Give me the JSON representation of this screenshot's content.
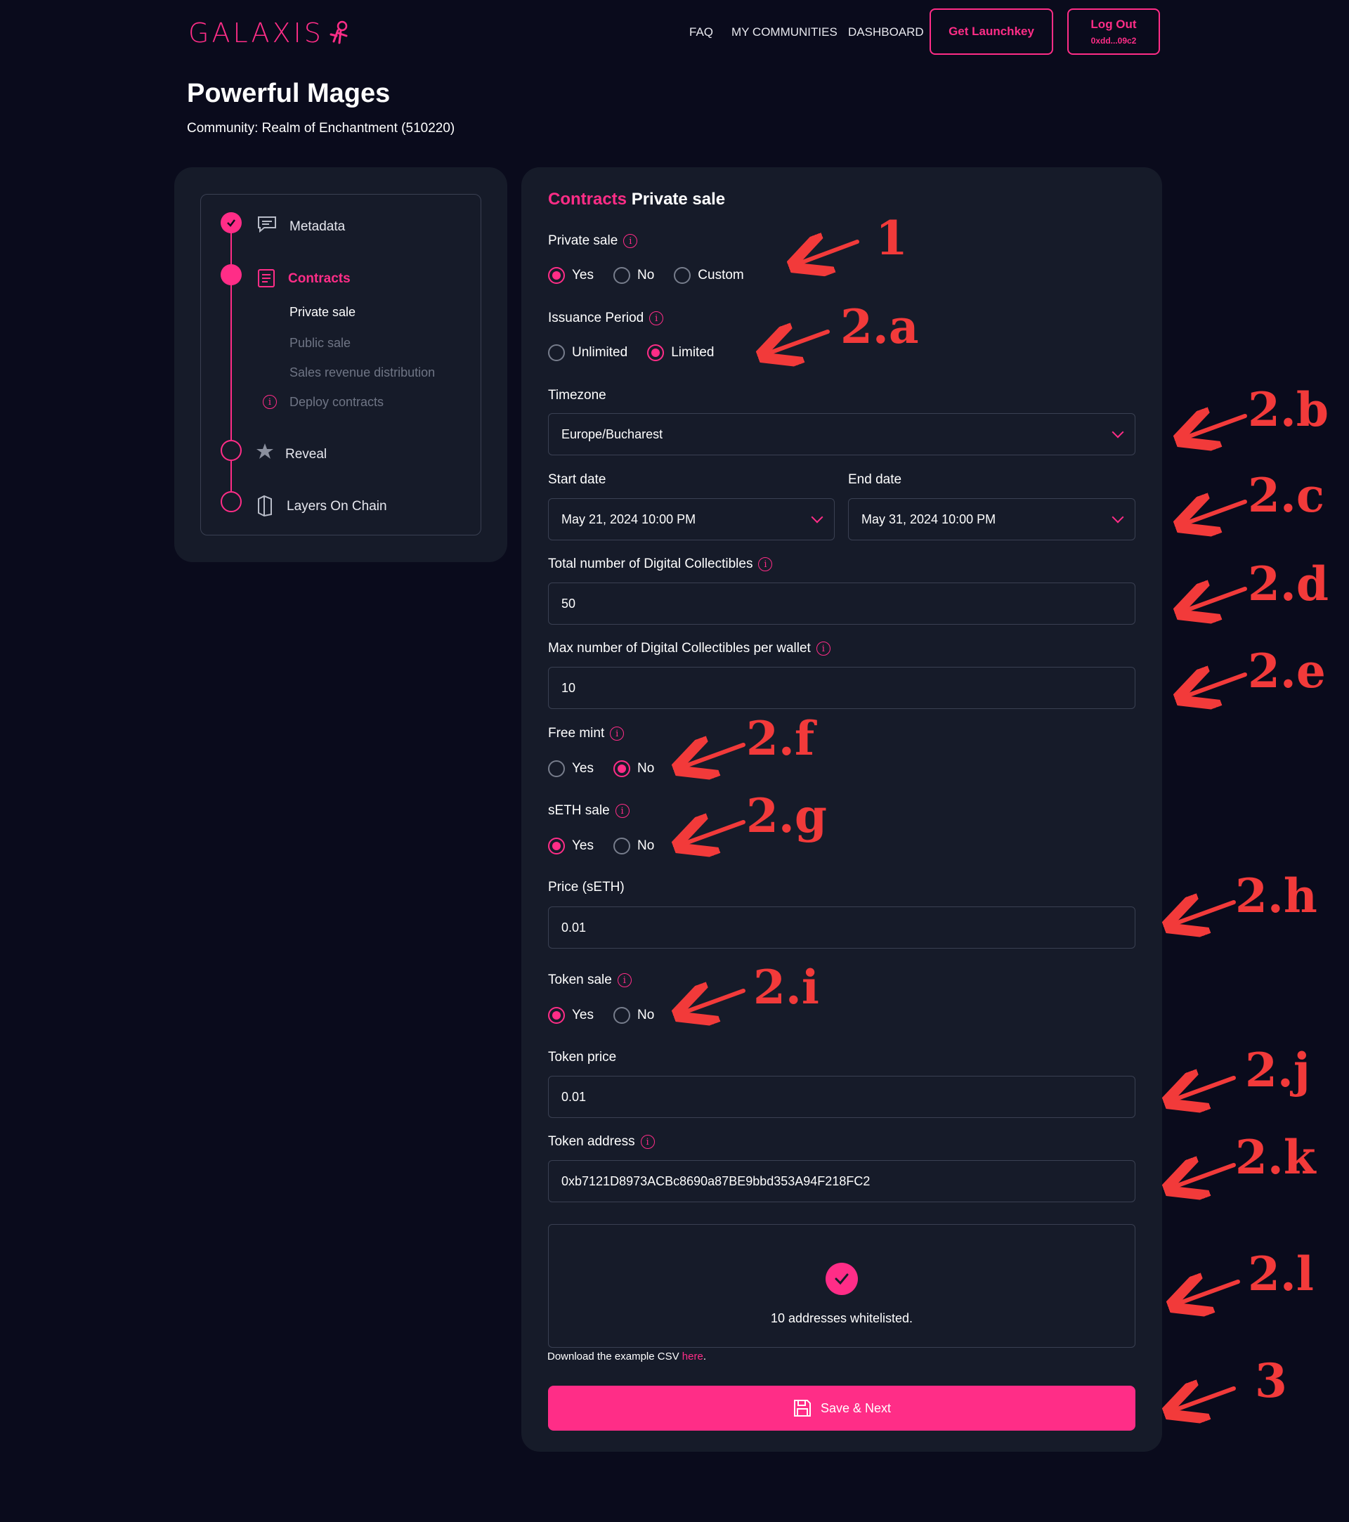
{
  "header": {
    "logo": "GALAXIS",
    "nav": [
      "FAQ",
      "MY COMMUNITIES",
      "DASHBOARD"
    ],
    "get_launchkey": "Get Launchkey",
    "logout": "Log Out",
    "address": "0xdd...09c2"
  },
  "page": {
    "title": "Powerful Mages",
    "community": "Community: Realm of Enchantment (510220)"
  },
  "steps": {
    "metadata": "Metadata",
    "contracts": "Contracts",
    "sub": [
      "Private sale",
      "Public sale",
      "Sales revenue distribution",
      "Deploy contracts"
    ],
    "reveal": "Reveal",
    "layers": "Layers On Chain"
  },
  "form": {
    "title_pink": "Contracts",
    "title_white": "Private sale",
    "private_sale": {
      "label": "Private sale",
      "options": [
        "Yes",
        "No",
        "Custom"
      ],
      "selected": "Yes"
    },
    "issuance": {
      "label": "Issuance Period",
      "options": [
        "Unlimited",
        "Limited"
      ],
      "selected": "Limited"
    },
    "timezone": {
      "label": "Timezone",
      "value": "Europe/Bucharest"
    },
    "start_date": {
      "label": "Start date",
      "value": "May 21, 2024 10:00 PM"
    },
    "end_date": {
      "label": "End date",
      "value": "May 31, 2024 10:00 PM"
    },
    "total": {
      "label": "Total number of Digital Collectibles",
      "value": "50"
    },
    "max_wallet": {
      "label": "Max number of Digital Collectibles per wallet",
      "value": "10"
    },
    "free_mint": {
      "label": "Free mint",
      "options": [
        "Yes",
        "No"
      ],
      "selected": "No"
    },
    "seth_sale": {
      "label": "sETH sale",
      "options": [
        "Yes",
        "No"
      ],
      "selected": "Yes"
    },
    "price": {
      "label": "Price (sETH)",
      "value": "0.01"
    },
    "token_sale": {
      "label": "Token sale",
      "options": [
        "Yes",
        "No"
      ],
      "selected": "Yes"
    },
    "token_price": {
      "label": "Token price",
      "value": "0.01"
    },
    "token_address": {
      "label": "Token address",
      "value": "0xb7121D8973ACBc8690a87BE9bbd353A94F218FC2"
    },
    "whitelist": "10 addresses whitelisted.",
    "csv_text": "Download the example CSV ",
    "csv_link": "here",
    "csv_end": ".",
    "save": "Save & Next"
  },
  "annotations": [
    "1",
    "2.a",
    "2.b",
    "2.c",
    "2.d",
    "2.e",
    "2.f",
    "2.g",
    "2.h",
    "2.i",
    "2.j",
    "2.k",
    "2.l",
    "3"
  ],
  "colors": {
    "accent": "#ff2d87",
    "background": "#0a0b1c",
    "card": "#161b29",
    "annotation": "#f23a3a"
  }
}
